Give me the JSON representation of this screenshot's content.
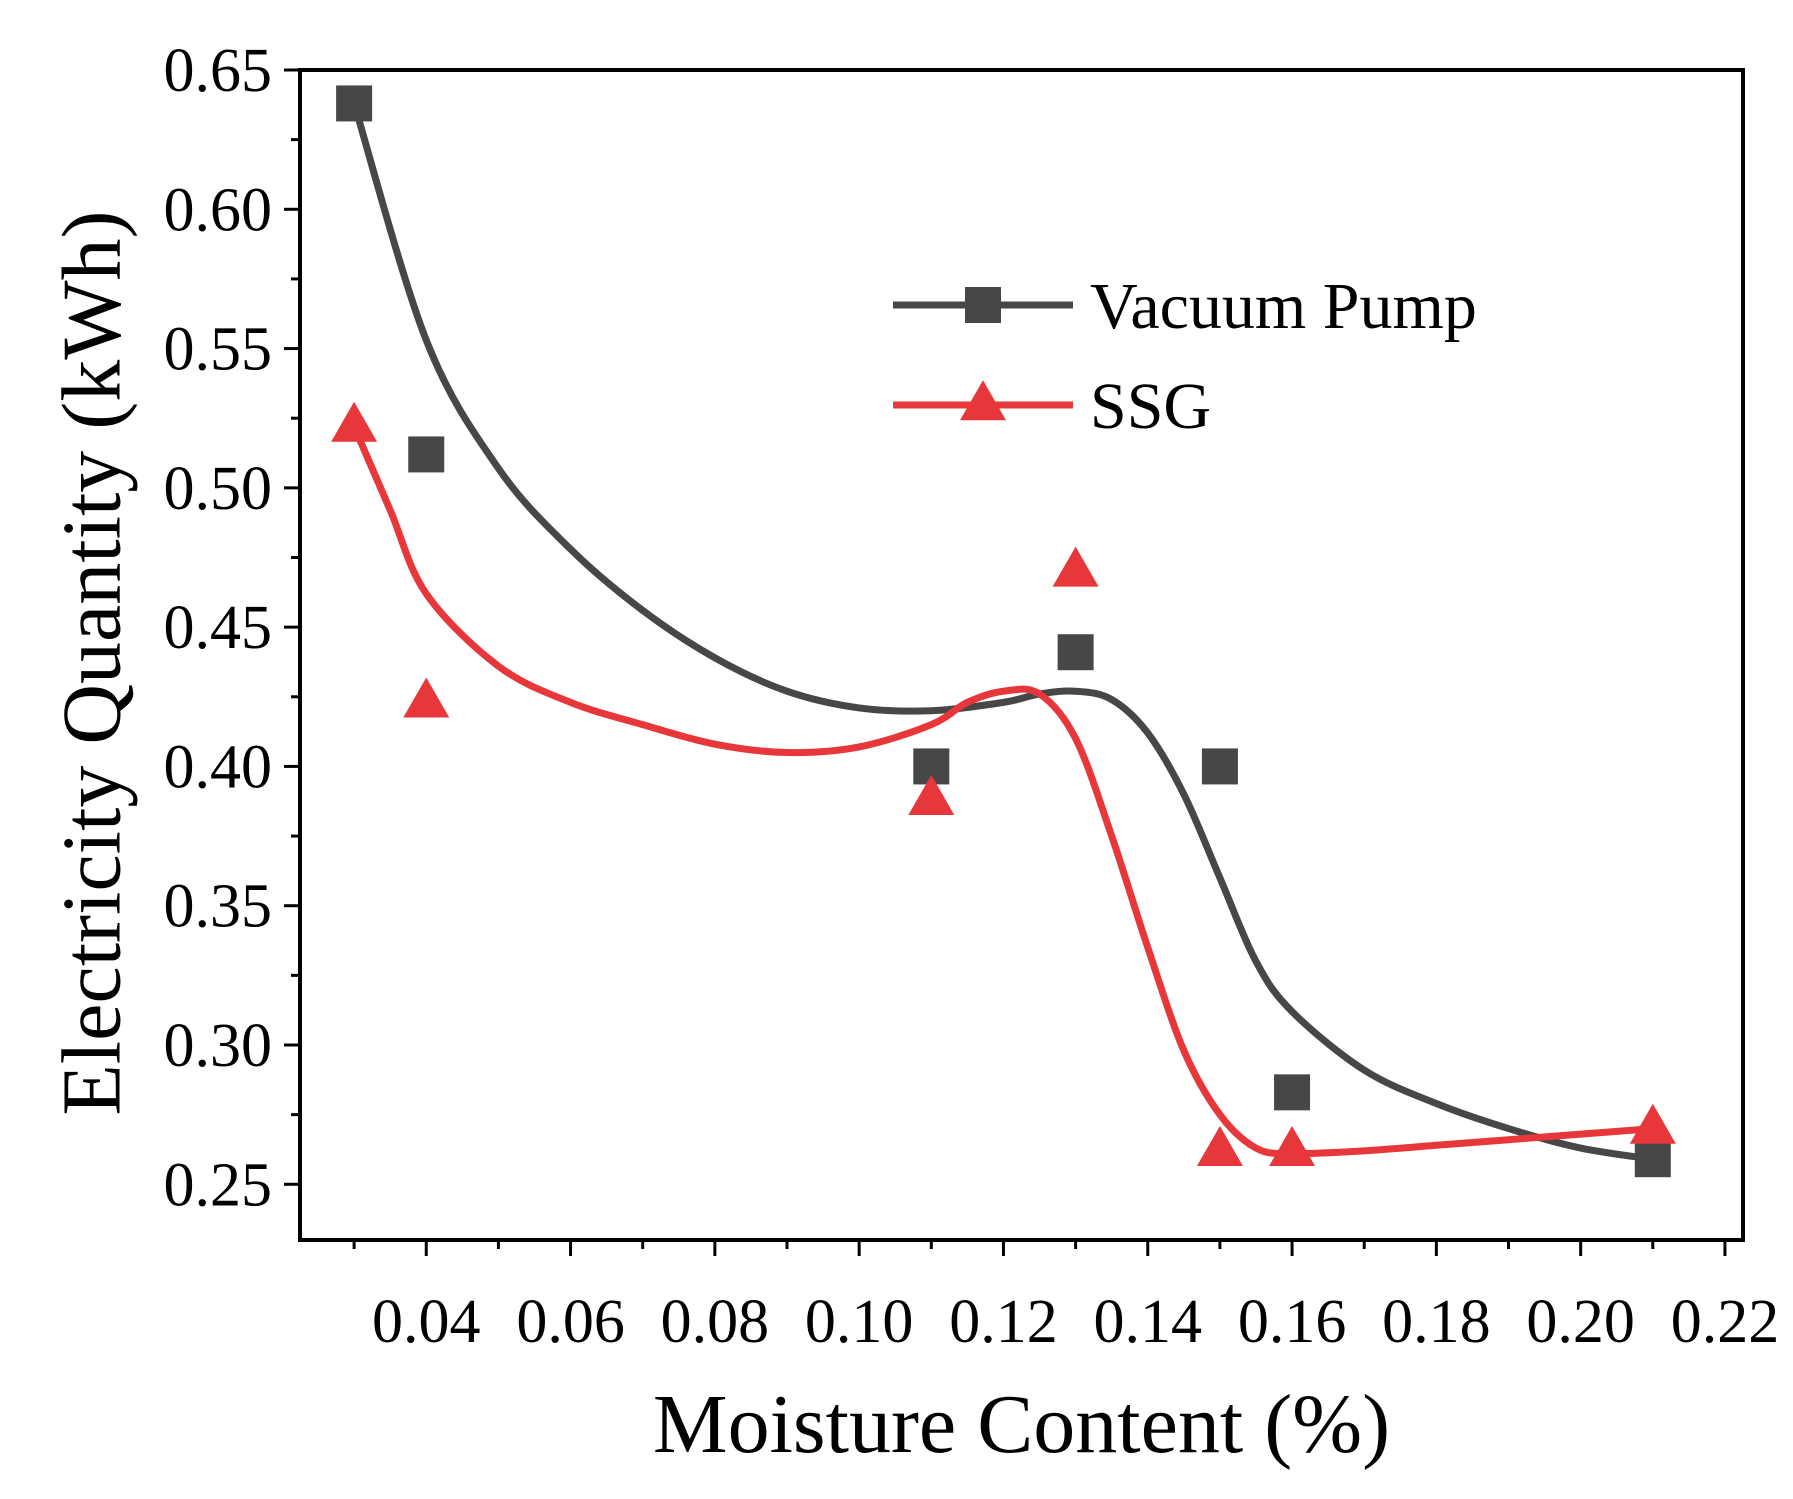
{
  "chart_data": {
    "type": "scatter",
    "title": "",
    "xlabel": "Moisture Content (%)",
    "ylabel": "Electricity Quantity (kWh)",
    "xlim": [
      0.0225,
      0.2225
    ],
    "ylim": [
      0.23,
      0.65
    ],
    "x_ticks": [
      0.04,
      0.06,
      0.08,
      0.1,
      0.12,
      0.14,
      0.16,
      0.18,
      0.2,
      0.22
    ],
    "x_tick_labels": [
      "0.04",
      "0.06",
      "0.08",
      "0.10",
      "0.12",
      "0.14",
      "0.16",
      "0.18",
      "0.20",
      "0.22"
    ],
    "y_ticks": [
      0.25,
      0.3,
      0.35,
      0.4,
      0.45,
      0.5,
      0.55,
      0.6,
      0.65
    ],
    "y_tick_labels": [
      "0.25",
      "0.30",
      "0.35",
      "0.40",
      "0.45",
      "0.50",
      "0.55",
      "0.60",
      "0.65"
    ],
    "grid": false,
    "legend_position": "upper-right",
    "series": [
      {
        "name": "Vacuum Pump",
        "color": "#474747",
        "marker": "square",
        "x": [
          0.03,
          0.04,
          0.11,
          0.13,
          0.15,
          0.16,
          0.21
        ],
        "y": [
          0.638,
          0.512,
          0.4,
          0.441,
          0.4,
          0.283,
          0.259
        ],
        "fit_x": [
          0.03,
          0.04,
          0.05,
          0.06,
          0.07,
          0.08,
          0.09,
          0.1,
          0.11,
          0.12,
          0.125,
          0.13,
          0.135,
          0.14,
          0.145,
          0.15,
          0.155,
          0.16,
          0.17,
          0.18,
          0.19,
          0.2,
          0.21
        ],
        "fit_y": [
          0.638,
          0.553,
          0.507,
          0.478,
          0.456,
          0.439,
          0.427,
          0.421,
          0.42,
          0.423,
          0.426,
          0.427,
          0.424,
          0.412,
          0.39,
          0.36,
          0.33,
          0.312,
          0.291,
          0.279,
          0.27,
          0.263,
          0.259
        ]
      },
      {
        "name": "SSG",
        "color": "#e8373a",
        "marker": "triangle",
        "x": [
          0.03,
          0.04,
          0.11,
          0.13,
          0.15,
          0.16,
          0.21
        ],
        "y": [
          0.522,
          0.423,
          0.388,
          0.47,
          0.262,
          0.262,
          0.27
        ],
        "fit_x": [
          0.03,
          0.035,
          0.04,
          0.05,
          0.06,
          0.07,
          0.08,
          0.09,
          0.1,
          0.11,
          0.115,
          0.12,
          0.125,
          0.13,
          0.135,
          0.14,
          0.145,
          0.15,
          0.155,
          0.16,
          0.17,
          0.18,
          0.19,
          0.2,
          0.21
        ],
        "fit_y": [
          0.522,
          0.492,
          0.462,
          0.436,
          0.423,
          0.415,
          0.408,
          0.405,
          0.407,
          0.415,
          0.423,
          0.427,
          0.426,
          0.41,
          0.375,
          0.335,
          0.298,
          0.275,
          0.263,
          0.261,
          0.262,
          0.264,
          0.266,
          0.268,
          0.27
        ]
      }
    ]
  }
}
